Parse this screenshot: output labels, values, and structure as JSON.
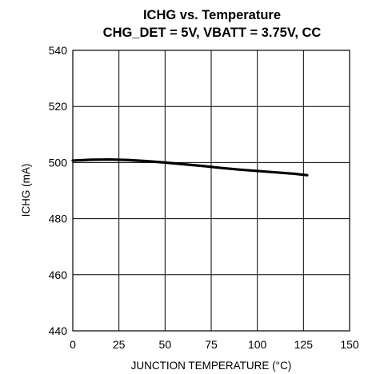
{
  "chart_data": {
    "type": "line",
    "title": "ICHG vs. Temperature",
    "subtitle": "CHG_DET = 5V, VBATT = 3.75V, CC",
    "xlabel": "JUNCTION TEMPERATURE (°C)",
    "ylabel": "ICHG (mA)",
    "xlim": [
      0,
      150
    ],
    "ylim": [
      440,
      540
    ],
    "x_ticks": [
      "0",
      "25",
      "50",
      "75",
      "100",
      "125",
      "150"
    ],
    "y_ticks": [
      "440",
      "460",
      "480",
      "500",
      "520",
      "540"
    ],
    "grid": true,
    "legend": "none",
    "series": [
      {
        "color": "#000000",
        "x": [
          0,
          10,
          20,
          30,
          40,
          50,
          60,
          70,
          80,
          90,
          100,
          110,
          120,
          127
        ],
        "y": [
          500.7,
          501.0,
          501.1,
          500.9,
          500.5,
          500.0,
          499.4,
          498.8,
          498.1,
          497.5,
          497.0,
          496.5,
          496.0,
          495.5
        ]
      }
    ]
  }
}
